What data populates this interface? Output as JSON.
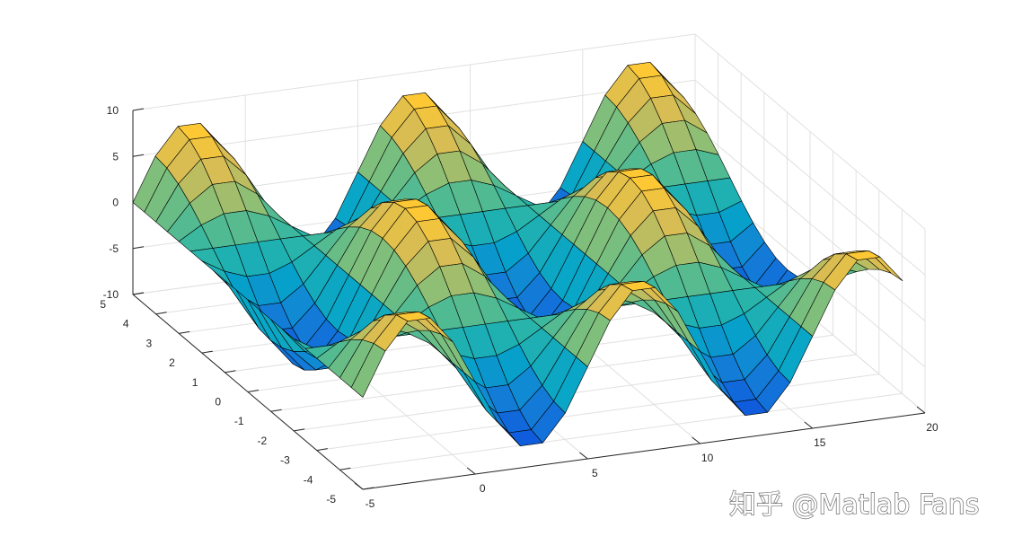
{
  "chart_data": {
    "type": "surface",
    "title": "",
    "xlabel": "",
    "ylabel": "",
    "zlabel": "",
    "function": "z = 8*sin(pi*x/5)*cos(pi*y/5)",
    "xlim": [
      -5,
      20
    ],
    "ylim": [
      -5,
      5
    ],
    "zlim": [
      -10,
      10
    ],
    "x_ticks": [
      "-5",
      "0",
      "5",
      "10",
      "15",
      "20"
    ],
    "y_ticks": [
      "-5",
      "-4",
      "-3",
      "-2",
      "-1",
      "0",
      "1",
      "2",
      "3",
      "4",
      "5"
    ],
    "z_ticks": [
      "-10",
      "-5",
      "0",
      "5",
      "10"
    ],
    "x_grid_start": -5,
    "x_grid_end": 19,
    "x_grid_step": 1,
    "y_grid_start": -5,
    "y_grid_end": 5,
    "y_grid_step": 0.5,
    "grid": true,
    "box": false,
    "colormap": "parula",
    "colormap_stops": [
      "#352a87",
      "#0f5cdd",
      "#1481d6",
      "#06a4ca",
      "#2eb7a4",
      "#87bf77",
      "#d1bb59",
      "#fec832",
      "#f9fb0e"
    ]
  },
  "watermark": {
    "text": "知乎 @Matlab Fans"
  }
}
